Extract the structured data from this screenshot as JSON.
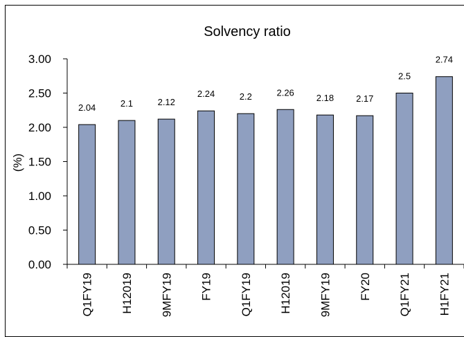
{
  "chart_data": {
    "type": "bar",
    "title": "Solvency ratio",
    "ylabel": "(%)",
    "xlabel": "",
    "ylim": [
      0,
      3
    ],
    "yticks": [
      "0.00",
      "0.50",
      "1.00",
      "1.50",
      "2.00",
      "2.50",
      "3.00"
    ],
    "categories": [
      "Q1FY19",
      "H12019",
      "9MFY19",
      "FY19",
      "Q1FY19",
      "H12019",
      "9MFY19",
      "FY20",
      "Q1FY21",
      "H1FY21"
    ],
    "values": [
      2.04,
      2.1,
      2.12,
      2.24,
      2.2,
      2.26,
      2.18,
      2.17,
      2.5,
      2.74
    ],
    "data_labels": [
      "2.04",
      "2.1",
      "2.12",
      "2.24",
      "2.2",
      "2.26",
      "2.18",
      "2.17",
      "2.5",
      "2.74"
    ],
    "grid": false,
    "legend": "none",
    "bar_color": "#8f9fc0"
  }
}
